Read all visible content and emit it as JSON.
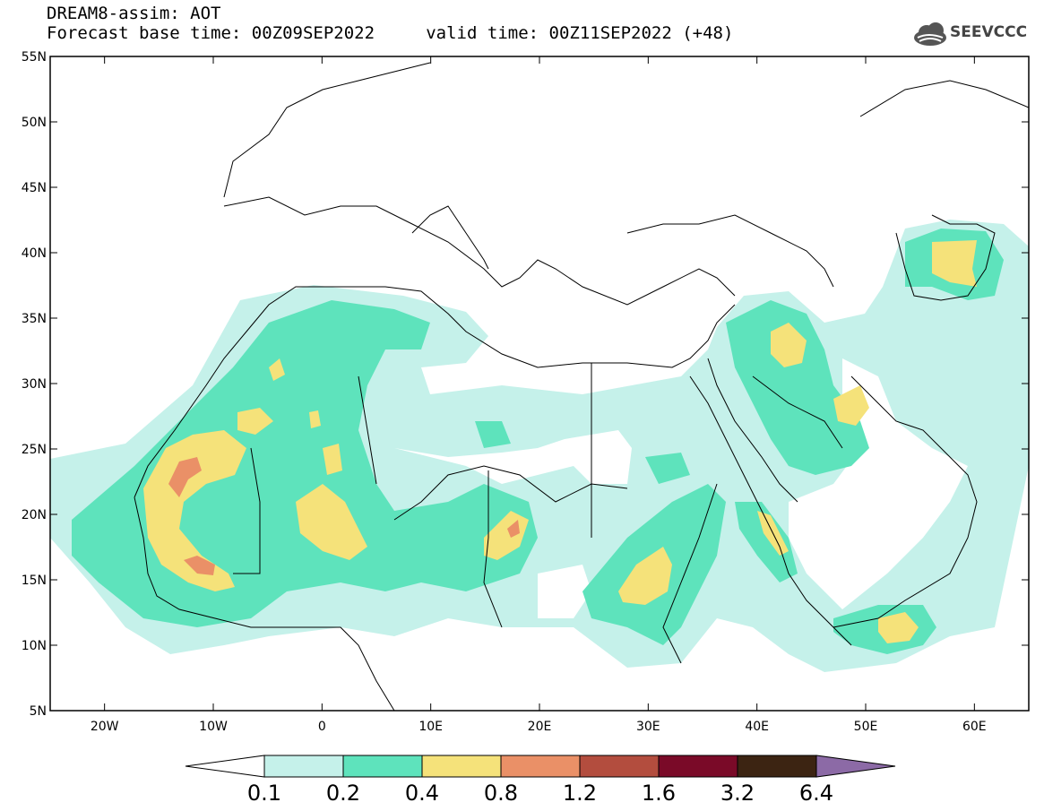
{
  "header": {
    "line1": "DREAM8-assim: AOT",
    "line2": "Forecast base time: 00Z09SEP2022     valid time: 00Z11SEP2022 (+48)",
    "logo_text": "SEEVCCC"
  },
  "map": {
    "lon_range": [
      -25,
      65
    ],
    "lat_range": [
      5,
      55
    ],
    "lat_ticks": [
      "5N",
      "10N",
      "15N",
      "20N",
      "25N",
      "30N",
      "35N",
      "40N",
      "45N",
      "50N",
      "55N"
    ],
    "lat_tick_values": [
      5,
      10,
      15,
      20,
      25,
      30,
      35,
      40,
      45,
      50,
      55
    ],
    "lon_ticks": [
      "20W",
      "10W",
      "0",
      "10E",
      "20E",
      "30E",
      "40E",
      "50E",
      "60E"
    ],
    "lon_tick_values": [
      -20,
      -10,
      0,
      10,
      20,
      30,
      40,
      50,
      60
    ]
  },
  "legend": {
    "labels": [
      "0.1",
      "0.2",
      "0.4",
      "0.8",
      "1.2",
      "1.6",
      "3.2",
      "6.4"
    ],
    "colors": [
      "#ffffff",
      "#c5f1ea",
      "#5ee3bc",
      "#f5e27a",
      "#ea9067",
      "#b34d3e",
      "#7a0a28",
      "#3c2412",
      "#8c6aa6"
    ]
  }
}
